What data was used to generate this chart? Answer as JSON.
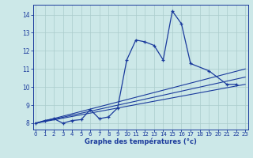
{
  "xlabel": "Graphe des températures (°c)",
  "bg_color": "#cce8e8",
  "grid_color": "#aacccc",
  "line_color": "#1a3a9c",
  "x_ticks": [
    0,
    1,
    2,
    3,
    4,
    5,
    6,
    7,
    8,
    9,
    10,
    11,
    12,
    13,
    14,
    15,
    16,
    17,
    18,
    19,
    20,
    21,
    22,
    23
  ],
  "y_ticks": [
    8,
    9,
    10,
    11,
    12,
    13,
    14
  ],
  "xlim": [
    -0.3,
    23.3
  ],
  "ylim": [
    7.65,
    14.55
  ],
  "main_curve_x": [
    0,
    1,
    2,
    3,
    4,
    5,
    6,
    7,
    8,
    9,
    10,
    11,
    12,
    13,
    14,
    15,
    16,
    17,
    19,
    21,
    22
  ],
  "main_curve_y": [
    8.0,
    8.15,
    8.25,
    8.0,
    8.15,
    8.2,
    8.75,
    8.25,
    8.35,
    8.85,
    11.5,
    12.6,
    12.5,
    12.3,
    11.5,
    14.2,
    13.5,
    11.3,
    10.9,
    10.15,
    10.15
  ],
  "line2_x": [
    0,
    23
  ],
  "line2_y": [
    8.0,
    10.15
  ],
  "line3_x": [
    0,
    23
  ],
  "line3_y": [
    8.0,
    11.0
  ],
  "line4_x": [
    0,
    23
  ],
  "line4_y": [
    8.0,
    10.55
  ]
}
